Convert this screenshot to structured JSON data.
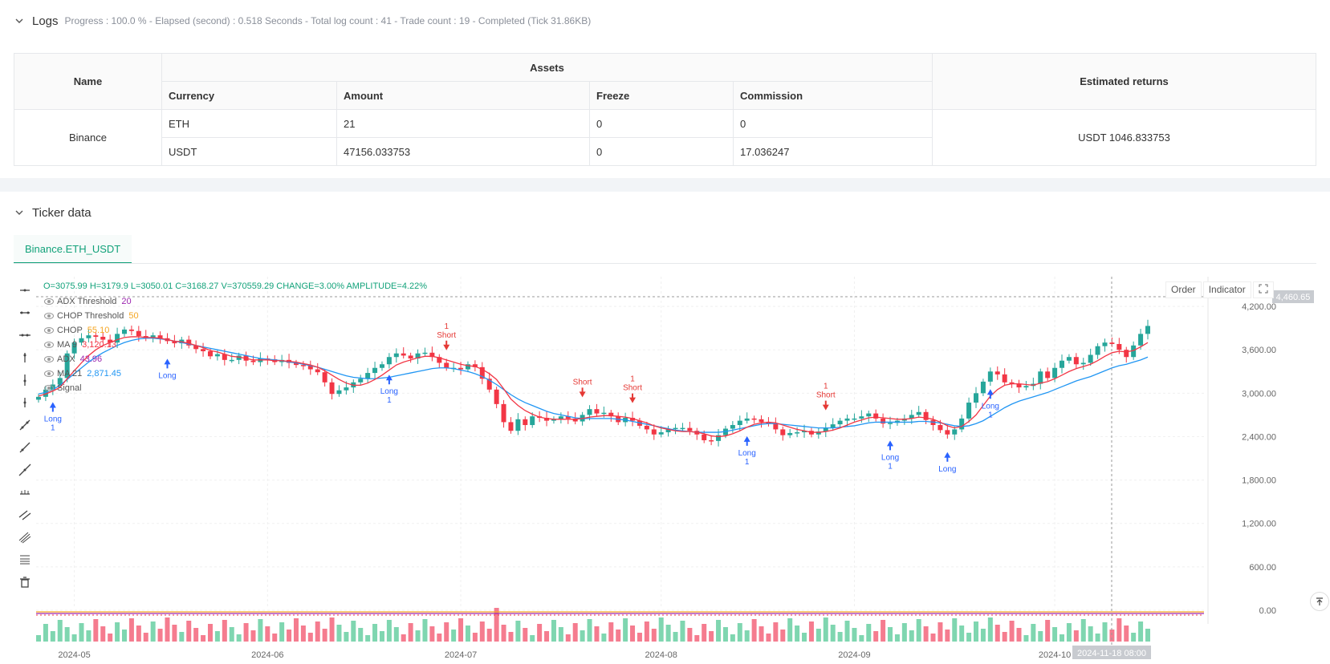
{
  "logs": {
    "title": "Logs",
    "meta": "Progress : 100.0 % - Elapsed (second) : 0.518  Seconds - Total log count : 41 - Trade count : 19 - Completed (Tick 31.86KB)"
  },
  "assets_table": {
    "col_name": "Name",
    "col_assets": "Assets",
    "col_returns": "Estimated returns",
    "sub_currency": "Currency",
    "sub_amount": "Amount",
    "sub_freeze": "Freeze",
    "sub_commission": "Commission",
    "exchange": "Binance",
    "rows": [
      {
        "currency": "ETH",
        "amount": "21",
        "freeze": "0",
        "commission": "0"
      },
      {
        "currency": "USDT",
        "amount": "47156.033753",
        "freeze": "0",
        "commission": "17.036247"
      }
    ],
    "estimated_returns": "USDT 1046.833753"
  },
  "ticker": {
    "title": "Ticker data",
    "tab": "Binance.ETH_USDT"
  },
  "ohlc": {
    "o": "O=3075.99",
    "h": "H=3179.9",
    "l": "L=3050.01",
    "c": "C=3168.27",
    "v": "V=370559.29",
    "change": "CHANGE=3.00%",
    "amp": "AMPLITUDE=4.22%"
  },
  "legend": [
    {
      "label": "ADX Threshold",
      "value": "20",
      "color": "#9c27b0"
    },
    {
      "label": "CHOP Threshold",
      "value": "50",
      "color": "#f5a623"
    },
    {
      "label": "CHOP",
      "value": "55.10",
      "color": "#f5a623"
    },
    {
      "label": "MA 9",
      "value": "3,120.13",
      "color": "#f23645"
    },
    {
      "label": "ADX",
      "value": "43.96",
      "color": "#9c27b0"
    },
    {
      "label": "MA 21",
      "value": "2,871.45",
      "color": "#2196f3"
    },
    {
      "label": "Signal",
      "value": "",
      "color": "#888888"
    }
  ],
  "chart_buttons": {
    "order": "Order",
    "indicator": "Indicator"
  },
  "chart_data": {
    "type": "candlestick",
    "y_ticks": [
      "4,200.00",
      "3,600.00",
      "3,000.00",
      "2,400.00",
      "1,800.00",
      "1,200.00",
      "600.00",
      "0.00"
    ],
    "y_tick_values": [
      4200,
      3600,
      3000,
      2400,
      1800,
      1200,
      600,
      0
    ],
    "ylim": [
      -100,
      4500
    ],
    "x_ticks": [
      "2024-05",
      "2024-06",
      "2024-07",
      "2024-08",
      "2024-09",
      "2024-10"
    ],
    "crosshair_price": "4,460.65",
    "crosshair_time": "2024-11-18 08:00",
    "close": [
      2950,
      3050,
      3120,
      3210,
      3550,
      3700,
      3760,
      3800,
      3780,
      3740,
      3700,
      3820,
      3880,
      3860,
      3790,
      3760,
      3800,
      3760,
      3720,
      3690,
      3740,
      3660,
      3610,
      3580,
      3510,
      3540,
      3460,
      3460,
      3520,
      3450,
      3430,
      3480,
      3470,
      3430,
      3460,
      3420,
      3390,
      3380,
      3330,
      3290,
      3150,
      2990,
      3040,
      3080,
      3150,
      3200,
      3280,
      3350,
      3400,
      3500,
      3550,
      3520,
      3480,
      3550,
      3560,
      3500,
      3420,
      3350,
      3350,
      3330,
      3400,
      3360,
      3200,
      3050,
      2850,
      2600,
      2480,
      2640,
      2560,
      2680,
      2660,
      2620,
      2640,
      2680,
      2650,
      2610,
      2700,
      2780,
      2720,
      2730,
      2680,
      2600,
      2660,
      2620,
      2550,
      2500,
      2430,
      2460,
      2510,
      2520,
      2520,
      2480,
      2430,
      2350,
      2340,
      2420,
      2510,
      2560,
      2620,
      2650,
      2640,
      2600,
      2580,
      2500,
      2420,
      2450,
      2460,
      2480,
      2430,
      2470,
      2520,
      2570,
      2620,
      2650,
      2650,
      2680,
      2720,
      2650,
      2580,
      2590,
      2620,
      2650,
      2700,
      2740,
      2630,
      2560,
      2490,
      2430,
      2500,
      2650,
      2870,
      3000,
      3160,
      3300,
      3260,
      3150,
      3130,
      3080,
      3100,
      3130,
      3300,
      3210,
      3350,
      3450,
      3500,
      3400,
      3420,
      3530,
      3650,
      3700,
      3680,
      3600,
      3500,
      3660,
      3820,
      3930
    ],
    "ma9": [
      2960,
      2990,
      3030,
      3080,
      3200,
      3310,
      3420,
      3520,
      3600,
      3660,
      3700,
      3740,
      3770,
      3780,
      3780,
      3770,
      3770,
      3760,
      3740,
      3720,
      3710,
      3690,
      3660,
      3630,
      3590,
      3570,
      3540,
      3510,
      3500,
      3480,
      3460,
      3460,
      3460,
      3450,
      3450,
      3440,
      3430,
      3410,
      3390,
      3360,
      3310,
      3250,
      3190,
      3140,
      3110,
      3110,
      3140,
      3190,
      3250,
      3320,
      3390,
      3430,
      3460,
      3490,
      3510,
      3510,
      3490,
      3460,
      3430,
      3400,
      3380,
      3370,
      3330,
      3270,
      3190,
      3060,
      2920,
      2830,
      2760,
      2710,
      2670,
      2650,
      2640,
      2640,
      2640,
      2640,
      2650,
      2670,
      2680,
      2690,
      2690,
      2680,
      2670,
      2650,
      2620,
      2590,
      2550,
      2520,
      2500,
      2480,
      2470,
      2470,
      2460,
      2440,
      2410,
      2400,
      2410,
      2440,
      2480,
      2530,
      2570,
      2590,
      2600,
      2590,
      2560,
      2530,
      2500,
      2480,
      2460,
      2460,
      2470,
      2490,
      2520,
      2560,
      2600,
      2630,
      2660,
      2670,
      2660,
      2650,
      2640,
      2640,
      2650,
      2670,
      2660,
      2640,
      2600,
      2550,
      2520,
      2540,
      2610,
      2700,
      2830,
      2960,
      3050,
      3110,
      3130,
      3130,
      3120,
      3110,
      3140,
      3160,
      3200,
      3250,
      3300,
      3340,
      3370,
      3400,
      3450,
      3510,
      3560,
      3580,
      3570,
      3590,
      3640,
      3700
    ],
    "ma21": [
      2990,
      3010,
      3050,
      3110,
      3190,
      3270,
      3350,
      3430,
      3500,
      3560,
      3610,
      3660,
      3700,
      3730,
      3750,
      3760,
      3760,
      3750,
      3740,
      3720,
      3700,
      3680,
      3660,
      3640,
      3620,
      3600,
      3580,
      3560,
      3540,
      3520,
      3500,
      3480,
      3470,
      3460,
      3450,
      3430,
      3420,
      3400,
      3380,
      3360,
      3330,
      3300,
      3270,
      3240,
      3220,
      3210,
      3200,
      3200,
      3210,
      3220,
      3240,
      3260,
      3280,
      3300,
      3320,
      3340,
      3350,
      3350,
      3340,
      3320,
      3300,
      3270,
      3230,
      3180,
      3120,
      3050,
      2980,
      2920,
      2870,
      2830,
      2790,
      2750,
      2720,
      2700,
      2680,
      2660,
      2650,
      2650,
      2650,
      2650,
      2650,
      2640,
      2630,
      2610,
      2590,
      2570,
      2550,
      2530,
      2510,
      2490,
      2480,
      2470,
      2460,
      2460,
      2460,
      2460,
      2470,
      2490,
      2510,
      2530,
      2550,
      2570,
      2580,
      2580,
      2570,
      2560,
      2550,
      2540,
      2530,
      2520,
      2520,
      2520,
      2530,
      2540,
      2550,
      2570,
      2590,
      2600,
      2600,
      2600,
      2600,
      2600,
      2600,
      2610,
      2610,
      2600,
      2590,
      2570,
      2550,
      2540,
      2550,
      2580,
      2620,
      2680,
      2740,
      2800,
      2850,
      2890,
      2920,
      2950,
      2980,
      3010,
      3050,
      3090,
      3130,
      3170,
      3200,
      3230,
      3270,
      3310,
      3350,
      3380,
      3400,
      3430,
      3460,
      3500
    ],
    "signals": [
      {
        "i": 2,
        "type": "Long",
        "qty": "1"
      },
      {
        "i": 18,
        "type": "Long",
        "qty": ""
      },
      {
        "i": 49,
        "type": "Long",
        "qty": "1"
      },
      {
        "i": 57,
        "type": "Short",
        "qty": "1"
      },
      {
        "i": 76,
        "type": "Short",
        "qty": ""
      },
      {
        "i": 83,
        "type": "Short",
        "qty": "1"
      },
      {
        "i": 99,
        "type": "Long",
        "qty": "1"
      },
      {
        "i": 110,
        "type": "Short",
        "qty": "1"
      },
      {
        "i": 119,
        "type": "Long",
        "qty": "1"
      },
      {
        "i": 127,
        "type": "Long",
        "qty": ""
      },
      {
        "i": 133,
        "type": "Long",
        "qty": "1"
      }
    ],
    "volume_spike_index": 64
  }
}
